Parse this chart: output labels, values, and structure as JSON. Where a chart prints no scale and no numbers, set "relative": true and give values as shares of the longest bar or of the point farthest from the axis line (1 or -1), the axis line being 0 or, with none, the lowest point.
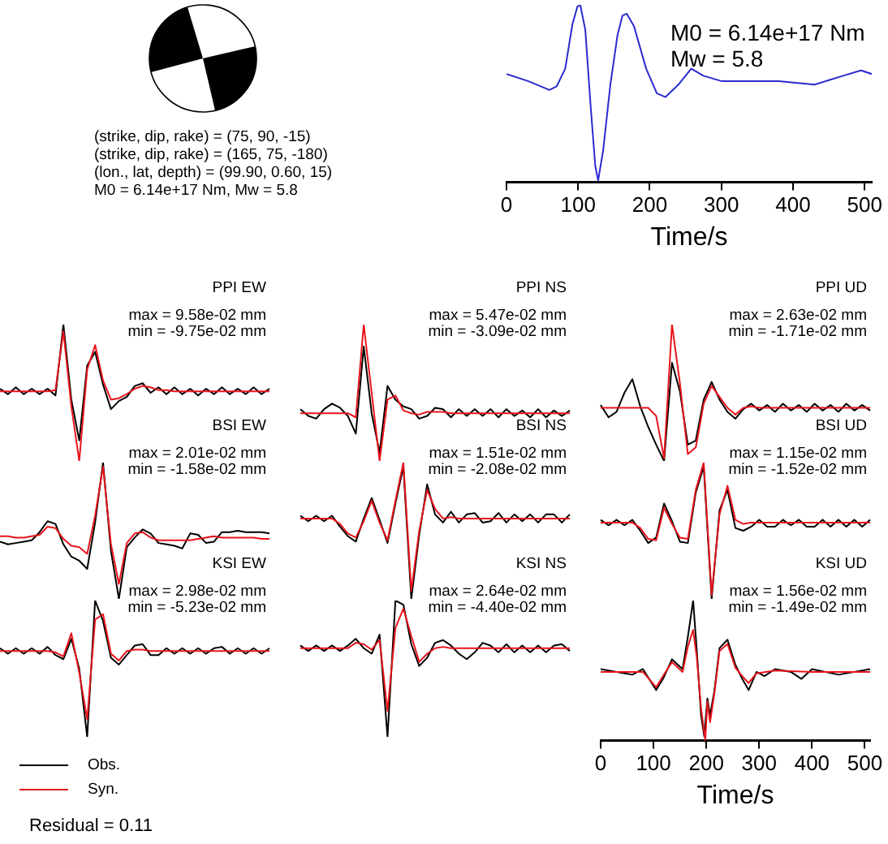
{
  "chart_data": [
    {
      "type": "other",
      "annotations": [
        "(strike, dip, rake) = (75, 90, -15)",
        "(strike, dip, rake) = (165, 75, -180)",
        "(lon., lat, depth) = (99.90, 0.60, 15)",
        "M0 = 6.14e+17 Nm, Mw = 5.8"
      ]
    },
    {
      "type": "line",
      "relative": true,
      "xlabel": "Time/s",
      "xlim": [
        0,
        510
      ],
      "xticks": [
        0,
        100,
        200,
        300,
        400,
        500
      ],
      "annotations": [
        "M0 = 6.14e+17 Nm",
        "Mw = 5.8"
      ],
      "series": [
        {
          "color": "#2a2ad0",
          "x": [
            0,
            30,
            60,
            70,
            82,
            92,
            99,
            103,
            110,
            118,
            124,
            128,
            135,
            145,
            155,
            162,
            168,
            178,
            195,
            210,
            222,
            240,
            258,
            275,
            300,
            340,
            380,
            430,
            470,
            495,
            510
          ],
          "values": [
            0.61,
            0.57,
            0.52,
            0.54,
            0.64,
            0.89,
            0.99,
            1,
            0.86,
            0.4,
            0.09,
            0.01,
            0.18,
            0.55,
            0.83,
            0.94,
            0.95,
            0.88,
            0.64,
            0.5,
            0.48,
            0.55,
            0.64,
            0.6,
            0.57,
            0.57,
            0.57,
            0.55,
            0.6,
            0.63,
            0.61
          ]
        }
      ]
    },
    {
      "type": "line",
      "relative": true,
      "title": "PPI EW",
      "tick_labels": false,
      "annotations": [
        "max = 9.58e-02 mm",
        "min = -9.75e-02 mm"
      ],
      "categories": [
        null,
        null,
        null,
        null,
        null,
        null,
        null,
        null,
        null,
        null,
        null,
        null,
        null,
        null,
        null,
        null,
        null,
        null,
        null,
        null,
        null,
        null,
        null,
        null,
        null,
        null,
        null,
        null,
        null,
        null,
        null,
        null,
        null,
        null,
        null
      ],
      "series": [
        {
          "color": "#000000",
          "values": [
            0.53,
            0.49,
            0.54,
            0.49,
            0.53,
            0.49,
            0.53,
            0.48,
            1,
            0.45,
            0.15,
            0.7,
            0.8,
            0.56,
            0.38,
            0.44,
            0.47,
            0.55,
            0.57,
            0.5,
            0.54,
            0.49,
            0.54,
            0.49,
            0.53,
            0.48,
            0.53,
            0.49,
            0.54,
            0.49,
            0.53,
            0.49,
            0.54,
            0.49,
            0.53
          ]
        },
        {
          "color": "#e8141c",
          "values": [
            0.51,
            0.51,
            0.51,
            0.51,
            0.51,
            0.51,
            0.51,
            0.52,
            0.95,
            0.4,
            0,
            0.67,
            0.85,
            0.59,
            0.45,
            0.46,
            0.49,
            0.53,
            0.55,
            0.54,
            0.52,
            0.52,
            0.51,
            0.51,
            0.51,
            0.51,
            0.51,
            0.51,
            0.51,
            0.51,
            0.51,
            0.51,
            0.51,
            0.51,
            0.51
          ]
        }
      ]
    },
    {
      "type": "line",
      "relative": true,
      "title": "PPI NS",
      "tick_labels": false,
      "annotations": [
        "max = 5.47e-02 mm",
        "min = -3.09e-02 mm"
      ],
      "categories": [
        null,
        null,
        null,
        null,
        null,
        null,
        null,
        null,
        null,
        null,
        null,
        null,
        null,
        null,
        null,
        null,
        null,
        null,
        null,
        null,
        null,
        null,
        null,
        null,
        null,
        null,
        null,
        null,
        null,
        null,
        null,
        null,
        null,
        null,
        null
      ],
      "series": [
        {
          "color": "#000000",
          "values": [
            0.38,
            0.33,
            0.31,
            0.38,
            0.42,
            0.39,
            0.33,
            0.2,
            0.84,
            0.35,
            0.06,
            0.55,
            0.45,
            0.4,
            0.38,
            0.31,
            0.33,
            0.39,
            0.38,
            0.32,
            0.38,
            0.33,
            0.38,
            0.33,
            0.38,
            0.32,
            0.38,
            0.33,
            0.37,
            0.32,
            0.38,
            0.32,
            0.37,
            0.33,
            0.37
          ]
        },
        {
          "color": "#e8141c",
          "values": [
            0.35,
            0.35,
            0.35,
            0.35,
            0.35,
            0.35,
            0.35,
            0.32,
            1,
            0.5,
            0,
            0.45,
            0.48,
            0.37,
            0.35,
            0.34,
            0.36,
            0.36,
            0.36,
            0.35,
            0.35,
            0.35,
            0.35,
            0.35,
            0.35,
            0.35,
            0.35,
            0.35,
            0.35,
            0.35,
            0.35,
            0.35,
            0.35,
            0.35,
            0.35
          ]
        }
      ]
    },
    {
      "type": "line",
      "relative": true,
      "title": "PPI UD",
      "tick_labels": false,
      "annotations": [
        "max = 2.63e-02 mm",
        "min = -1.71e-02 mm"
      ],
      "categories": [
        null,
        null,
        null,
        null,
        null,
        null,
        null,
        null,
        null,
        null,
        null,
        null,
        null,
        null,
        null,
        null,
        null,
        null,
        null,
        null,
        null,
        null,
        null,
        null,
        null,
        null,
        null,
        null,
        null,
        null,
        null,
        null,
        null,
        null,
        null
      ],
      "series": [
        {
          "color": "#000000",
          "values": [
            0.41,
            0.32,
            0.36,
            0.5,
            0.6,
            0.4,
            0.25,
            0.12,
            0,
            0.72,
            0.51,
            0.12,
            0.15,
            0.45,
            0.58,
            0.45,
            0.36,
            0.31,
            0.38,
            0.42,
            0.37,
            0.41,
            0.36,
            0.42,
            0.37,
            0.41,
            0.36,
            0.42,
            0.37,
            0.41,
            0.36,
            0.42,
            0.37,
            0.41,
            0.37
          ]
        },
        {
          "color": "#e8141c",
          "values": [
            0.39,
            0.39,
            0.39,
            0.39,
            0.39,
            0.39,
            0.39,
            0.33,
            0.02,
            1,
            0.57,
            0.05,
            0.1,
            0.42,
            0.55,
            0.47,
            0.39,
            0.34,
            0.39,
            0.4,
            0.39,
            0.39,
            0.39,
            0.39,
            0.39,
            0.39,
            0.39,
            0.39,
            0.39,
            0.39,
            0.39,
            0.39,
            0.39,
            0.39,
            0.39
          ]
        }
      ]
    },
    {
      "type": "line",
      "relative": true,
      "title": "BSI EW",
      "tick_labels": false,
      "annotations": [
        "max = 2.01e-02 mm",
        "min = -1.58e-02 mm"
      ],
      "categories": [
        null,
        null,
        null,
        null,
        null,
        null,
        null,
        null,
        null,
        null,
        null,
        null,
        null,
        null,
        null,
        null,
        null,
        null,
        null,
        null,
        null,
        null,
        null,
        null,
        null,
        null,
        null,
        null,
        null,
        null,
        null,
        null,
        null,
        null,
        null
      ],
      "series": [
        {
          "color": "#000000",
          "values": [
            0.42,
            0.4,
            0.41,
            0.42,
            0.43,
            0.49,
            0.57,
            0.55,
            0.4,
            0.31,
            0.28,
            0.22,
            0.56,
            1,
            0.35,
            0,
            0.38,
            0.45,
            0.51,
            0.48,
            0.41,
            0.4,
            0.39,
            0.37,
            0.48,
            0.47,
            0.41,
            0.42,
            0.49,
            0.49,
            0.5,
            0.49,
            0.49,
            0.49,
            0.48
          ]
        },
        {
          "color": "#e8141c",
          "values": [
            0.46,
            0.46,
            0.45,
            0.45,
            0.46,
            0.47,
            0.53,
            0.52,
            0.44,
            0.39,
            0.38,
            0.33,
            0.61,
            0.97,
            0.4,
            0.11,
            0.41,
            0.48,
            0.49,
            0.45,
            0.43,
            0.43,
            0.43,
            0.43,
            0.43,
            0.44,
            0.45,
            0.46,
            0.45,
            0.45,
            0.45,
            0.45,
            0.45,
            0.44,
            0.44
          ]
        }
      ]
    },
    {
      "type": "line",
      "relative": true,
      "title": "BSI NS",
      "tick_labels": false,
      "annotations": [
        "max = 1.51e-02 mm",
        "min = -2.08e-02 mm"
      ],
      "categories": [
        null,
        null,
        null,
        null,
        null,
        null,
        null,
        null,
        null,
        null,
        null,
        null,
        null,
        null,
        null,
        null,
        null,
        null,
        null,
        null,
        null,
        null,
        null,
        null,
        null,
        null,
        null,
        null,
        null,
        null,
        null,
        null,
        null,
        null,
        null
      ],
      "series": [
        {
          "color": "#000000",
          "values": [
            0.61,
            0.57,
            0.61,
            0.57,
            0.61,
            0.53,
            0.46,
            0.42,
            0.59,
            0.74,
            0.58,
            0.41,
            0.7,
            0.97,
            0,
            0.47,
            0.84,
            0.62,
            0.56,
            0.64,
            0.56,
            0.62,
            0.63,
            0.56,
            0.57,
            0.63,
            0.56,
            0.62,
            0.57,
            0.62,
            0.56,
            0.62,
            0.62,
            0.56,
            0.62
          ]
        },
        {
          "color": "#e8141c",
          "values": [
            0.59,
            0.59,
            0.59,
            0.59,
            0.59,
            0.55,
            0.48,
            0.45,
            0.57,
            0.72,
            0.56,
            0.43,
            0.72,
            1,
            0.06,
            0.5,
            0.8,
            0.66,
            0.59,
            0.6,
            0.59,
            0.59,
            0.59,
            0.59,
            0.59,
            0.59,
            0.59,
            0.59,
            0.59,
            0.59,
            0.59,
            0.59,
            0.59,
            0.59,
            0.59
          ]
        }
      ]
    },
    {
      "type": "line",
      "relative": true,
      "title": "BSI UD",
      "tick_labels": false,
      "annotations": [
        "max = 1.15e-02 mm",
        "min = -1.52e-02 mm"
      ],
      "categories": [
        null,
        null,
        null,
        null,
        null,
        null,
        null,
        null,
        null,
        null,
        null,
        null,
        null,
        null,
        null,
        null,
        null,
        null,
        null,
        null,
        null,
        null,
        null,
        null,
        null,
        null,
        null,
        null,
        null,
        null,
        null,
        null,
        null,
        null,
        null
      ],
      "series": [
        {
          "color": "#000000",
          "values": [
            0.58,
            0.54,
            0.58,
            0.54,
            0.58,
            0.5,
            0.41,
            0.45,
            0.7,
            0.57,
            0.42,
            0.41,
            0.78,
            0.97,
            0,
            0.65,
            0.8,
            0.52,
            0.5,
            0.53,
            0.58,
            0.53,
            0.53,
            0.58,
            0.54,
            0.58,
            0.53,
            0.53,
            0.58,
            0.53,
            0.58,
            0.53,
            0.58,
            0.53,
            0.58
          ]
        },
        {
          "color": "#e8141c",
          "values": [
            0.56,
            0.56,
            0.56,
            0.56,
            0.56,
            0.52,
            0.44,
            0.43,
            0.67,
            0.55,
            0.45,
            0.44,
            0.8,
            1,
            0.03,
            0.62,
            0.83,
            0.58,
            0.55,
            0.56,
            0.56,
            0.56,
            0.56,
            0.56,
            0.56,
            0.56,
            0.56,
            0.56,
            0.56,
            0.56,
            0.56,
            0.56,
            0.56,
            0.56,
            0.56
          ]
        }
      ]
    },
    {
      "type": "line",
      "relative": true,
      "title": "KSI EW",
      "tick_labels": false,
      "legend": "bottom left",
      "annotations": [
        "max = 2.98e-02 mm",
        "min = -5.23e-02 mm"
      ],
      "categories": [
        null,
        null,
        null,
        null,
        null,
        null,
        null,
        null,
        null,
        null,
        null,
        null,
        null,
        null,
        null,
        null,
        null,
        null,
        null,
        null,
        null,
        null,
        null,
        null,
        null,
        null,
        null,
        null,
        null,
        null,
        null,
        null,
        null,
        null,
        null
      ],
      "series": [
        {
          "name": "Obs.",
          "color": "#000000",
          "values": [
            0.65,
            0.61,
            0.65,
            0.61,
            0.65,
            0.61,
            0.66,
            0.6,
            0.57,
            0.72,
            0.5,
            0,
            1,
            0.85,
            0.58,
            0.53,
            0.6,
            0.67,
            0.68,
            0.6,
            0.6,
            0.65,
            0.61,
            0.65,
            0.61,
            0.65,
            0.61,
            0.65,
            0.66,
            0.61,
            0.65,
            0.61,
            0.65,
            0.61,
            0.65
          ]
        },
        {
          "name": "Syn.",
          "color": "#e8141c",
          "values": [
            0.63,
            0.63,
            0.63,
            0.63,
            0.63,
            0.63,
            0.63,
            0.62,
            0.59,
            0.76,
            0.47,
            0.13,
            0.86,
            0.9,
            0.61,
            0.56,
            0.63,
            0.64,
            0.64,
            0.63,
            0.63,
            0.63,
            0.63,
            0.63,
            0.63,
            0.63,
            0.63,
            0.63,
            0.63,
            0.63,
            0.63,
            0.63,
            0.63,
            0.63,
            0.63
          ]
        }
      ]
    },
    {
      "type": "line",
      "relative": true,
      "title": "KSI NS",
      "tick_labels": false,
      "annotations": [
        "max = 2.64e-02 mm",
        "min = -4.40e-02 mm"
      ],
      "categories": [
        null,
        null,
        null,
        null,
        null,
        null,
        null,
        null,
        null,
        null,
        null,
        null,
        null,
        null,
        null,
        null,
        null,
        null,
        null,
        null,
        null,
        null,
        null,
        null,
        null,
        null,
        null,
        null,
        null,
        null,
        null,
        null,
        null,
        null,
        null
      ],
      "series": [
        {
          "color": "#000000",
          "values": [
            0.67,
            0.63,
            0.67,
            0.63,
            0.67,
            0.63,
            0.67,
            0.72,
            0.65,
            0.61,
            0.75,
            0,
            1,
            0.97,
            0.68,
            0.52,
            0.58,
            0.69,
            0.71,
            0.67,
            0.61,
            0.57,
            0.62,
            0.69,
            0.67,
            0.62,
            0.68,
            0.62,
            0.67,
            0.62,
            0.67,
            0.62,
            0.67,
            0.68,
            0.63
          ]
        },
        {
          "color": "#e8141c",
          "values": [
            0.65,
            0.65,
            0.65,
            0.65,
            0.65,
            0.65,
            0.65,
            0.69,
            0.68,
            0.64,
            0.71,
            0.19,
            0.8,
            0.94,
            0.74,
            0.55,
            0.61,
            0.65,
            0.66,
            0.65,
            0.65,
            0.65,
            0.65,
            0.65,
            0.65,
            0.65,
            0.65,
            0.65,
            0.65,
            0.65,
            0.65,
            0.65,
            0.65,
            0.65,
            0.65
          ]
        }
      ]
    },
    {
      "type": "line",
      "relative": true,
      "title": "KSI UD",
      "xlabel": "Time/s",
      "xlim": [
        0,
        510
      ],
      "xticks": [
        0,
        100,
        200,
        300,
        400,
        500
      ],
      "annotations": [
        "max = 1.56e-02 mm",
        "min = -1.49e-02 mm"
      ],
      "series": [
        {
          "color": "#000000",
          "x": [
            0,
            60,
            80,
            105,
            118,
            135,
            155,
            165,
            175,
            182,
            190,
            196,
            202,
            207,
            215,
            225,
            240,
            255,
            268,
            280,
            295,
            310,
            330,
            360,
            380,
            400,
            450,
            510
          ],
          "values": [
            0.51,
            0.47,
            0.51,
            0.36,
            0.44,
            0.58,
            0.51,
            0.74,
            1,
            0.64,
            0.18,
            0.03,
            0.3,
            0.18,
            0.35,
            0.66,
            0.72,
            0.54,
            0.44,
            0.36,
            0.49,
            0.46,
            0.51,
            0.49,
            0.44,
            0.51,
            0.47,
            0.51
          ]
        },
        {
          "color": "#e8141c",
          "x": [
            0,
            80,
            105,
            118,
            135,
            155,
            165,
            175,
            182,
            190,
            198,
            202,
            207,
            215,
            225,
            240,
            255,
            268,
            280,
            295,
            330,
            400,
            510
          ],
          "values": [
            0.49,
            0.49,
            0.38,
            0.46,
            0.56,
            0.49,
            0.67,
            0.79,
            0.59,
            0.23,
            0,
            0.28,
            0.13,
            0.33,
            0.64,
            0.69,
            0.52,
            0.46,
            0.41,
            0.48,
            0.5,
            0.49,
            0.49
          ]
        }
      ]
    },
    {
      "type": "other",
      "annotations": [
        "Residual = 0.11"
      ]
    }
  ]
}
